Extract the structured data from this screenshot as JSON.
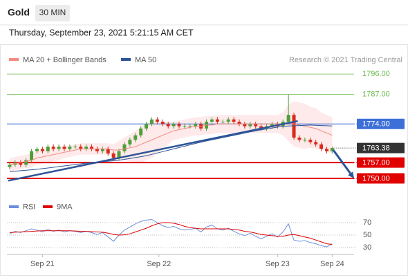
{
  "header": {
    "symbol": "Gold",
    "interval": "30 MIN",
    "timestamp": "Thursday, September 23, 2021 5:21:15 AM CET"
  },
  "chart_data": [
    {
      "type": "candlestick",
      "credit": "Research © 2021 Trading Central",
      "up_color": "#4f9e3a",
      "down_color": "#d9291c",
      "xlim": [
        -0.5,
        63
      ],
      "ylim": [
        1742,
        1800
      ],
      "open": [
        1755,
        1756,
        1757,
        1756,
        1758,
        1762,
        1763,
        1762,
        1764,
        1763,
        1764,
        1763,
        1764,
        1764,
        1763,
        1764,
        1763,
        1762,
        1763,
        1761,
        1759,
        1762,
        1765,
        1767,
        1769,
        1772,
        1774,
        1776,
        1775,
        1774,
        1773,
        1774,
        1773,
        1773,
        1773,
        1774,
        1772,
        1775,
        1776,
        1775,
        1775,
        1776,
        1775,
        1774,
        1773,
        1774,
        1773,
        1772,
        1773,
        1774,
        1773,
        1775,
        1778,
        1768,
        1767,
        1767,
        1766,
        1765,
        1763,
        1762
      ],
      "high": [
        1757,
        1758,
        1758,
        1759,
        1763,
        1764,
        1764,
        1765,
        1765,
        1765,
        1765,
        1765,
        1765,
        1765,
        1765,
        1765,
        1764,
        1764,
        1764,
        1762,
        1763,
        1766,
        1768,
        1770,
        1773,
        1775,
        1777,
        1777,
        1776,
        1775,
        1775,
        1775,
        1774,
        1774,
        1775,
        1775,
        1776,
        1777,
        1777,
        1776,
        1777,
        1777,
        1776,
        1775,
        1775,
        1775,
        1774,
        1774,
        1775,
        1775,
        1776,
        1787,
        1779,
        1769,
        1768,
        1768,
        1767,
        1766,
        1764,
        1764
      ],
      "low": [
        1754,
        1755,
        1755,
        1755,
        1757,
        1761,
        1761,
        1761,
        1762,
        1762,
        1762,
        1762,
        1763,
        1762,
        1762,
        1762,
        1761,
        1761,
        1760,
        1758,
        1758,
        1761,
        1764,
        1766,
        1768,
        1771,
        1773,
        1774,
        1773,
        1772,
        1772,
        1772,
        1772,
        1772,
        1772,
        1771,
        1771,
        1774,
        1774,
        1774,
        1774,
        1774,
        1773,
        1772,
        1772,
        1772,
        1771,
        1771,
        1772,
        1772,
        1772,
        1774,
        1767,
        1766,
        1766,
        1765,
        1764,
        1762,
        1761,
        1761
      ],
      "close": [
        1756,
        1757,
        1756,
        1758,
        1762,
        1763,
        1762,
        1764,
        1763,
        1764,
        1763,
        1764,
        1764,
        1763,
        1764,
        1763,
        1762,
        1763,
        1761,
        1759,
        1762,
        1765,
        1767,
        1769,
        1772,
        1774,
        1776,
        1775,
        1774,
        1773,
        1774,
        1773,
        1773,
        1773,
        1774,
        1772,
        1775,
        1776,
        1775,
        1775,
        1776,
        1775,
        1774,
        1773,
        1774,
        1773,
        1772,
        1773,
        1774,
        1773,
        1775,
        1778,
        1768,
        1767,
        1767,
        1766,
        1765,
        1763,
        1762,
        1763.4
      ],
      "series": [
        {
          "name": "MA 20 + Bollinger Bands",
          "color": "#f28b82",
          "band_color": "#fde3e3",
          "values": [
            1756,
            1756.5,
            1757,
            1757.5,
            1758,
            1759,
            1759.5,
            1760,
            1760.5,
            1761,
            1761.5,
            1762,
            1762.5,
            1763,
            1763,
            1763,
            1763,
            1763,
            1763,
            1762.5,
            1762.5,
            1763,
            1763.5,
            1764,
            1765,
            1766,
            1767,
            1768,
            1769,
            1770,
            1771,
            1771.5,
            1772,
            1772.5,
            1773,
            1773,
            1773.5,
            1773.5,
            1774,
            1774,
            1774,
            1774,
            1774,
            1774,
            1774,
            1774,
            1774,
            1774,
            1774,
            1774,
            1774,
            1774.5,
            1774,
            1773.5,
            1773,
            1772.5,
            1772,
            1771,
            1770,
            1769
          ],
          "upper": [
            1759,
            1759.5,
            1760,
            1760.5,
            1761,
            1762,
            1762.5,
            1763,
            1763.5,
            1764,
            1764,
            1764.5,
            1765,
            1765.5,
            1765.5,
            1765.5,
            1765.5,
            1765.5,
            1765.5,
            1765,
            1766.5,
            1768,
            1769.5,
            1771,
            1773,
            1774,
            1775,
            1775,
            1775,
            1775,
            1775,
            1775.5,
            1776,
            1776.5,
            1777,
            1777,
            1777.5,
            1777.5,
            1778,
            1778,
            1778,
            1778,
            1778,
            1778,
            1778,
            1778,
            1778,
            1778,
            1778,
            1778,
            1779,
            1782.5,
            1784,
            1783.5,
            1783,
            1781.5,
            1781,
            1779,
            1778,
            1777
          ],
          "lower": [
            1753,
            1753.5,
            1754,
            1754.5,
            1755,
            1756,
            1756.5,
            1757,
            1757.5,
            1758,
            1759,
            1759.5,
            1760,
            1760.5,
            1760.5,
            1760.5,
            1760.5,
            1760.5,
            1760.5,
            1760,
            1758.5,
            1758,
            1757.5,
            1757,
            1757,
            1758,
            1759,
            1761,
            1763,
            1765,
            1767,
            1767.5,
            1768,
            1768.5,
            1769,
            1769,
            1769.5,
            1769.5,
            1770,
            1770,
            1770,
            1770,
            1770,
            1770,
            1770,
            1770,
            1770,
            1770,
            1770,
            1770,
            1769,
            1766.5,
            1764,
            1763.5,
            1763,
            1763.5,
            1763,
            1763,
            1762,
            1761
          ]
        },
        {
          "name": "MA 50",
          "color": "#2c5597",
          "values": [
            1753,
            1753.2,
            1753.4,
            1753.6,
            1753.8,
            1754,
            1754.3,
            1754.6,
            1754.9,
            1755.2,
            1755.5,
            1755.8,
            1756.1,
            1756.4,
            1756.7,
            1757,
            1757.2,
            1757.4,
            1757.6,
            1757.8,
            1758,
            1758.4,
            1758.8,
            1759.2,
            1759.6,
            1760,
            1760.6,
            1761.2,
            1761.8,
            1762.4,
            1763,
            1763.6,
            1764.2,
            1764.8,
            1765.4,
            1766,
            1766.5,
            1767,
            1767.5,
            1768,
            1768.5,
            1769,
            1769.5,
            1770,
            1770.5,
            1771,
            1771.4,
            1771.8,
            1772.2,
            1772.6,
            1773,
            1773.1,
            1773.2,
            1773.3,
            1773.4,
            1773.5,
            1773.4,
            1773.3,
            1773.2,
            1773.1
          ]
        }
      ],
      "levels": [
        {
          "value": 1796,
          "label": "1796.00",
          "color": "#6cb84a",
          "boxed": false,
          "line_width": 0.8
        },
        {
          "value": 1787,
          "label": "1787.00",
          "color": "#6cb84a",
          "boxed": false,
          "line_width": 0.8
        },
        {
          "value": 1774,
          "label": "1774.00",
          "color": "#3d6fd8",
          "boxed": true,
          "line_width": 1.2
        },
        {
          "value": 1757,
          "label": "1757.00",
          "color": "#e00000",
          "boxed": true,
          "line_width": 2
        },
        {
          "value": 1750,
          "label": "1750.00",
          "color": "#e00000",
          "boxed": true,
          "line_width": 2
        }
      ],
      "current": 1763.38,
      "current_color": "#333333",
      "trendline": {
        "x": [
          -0.25,
          52.7
        ],
        "y": [
          1749,
          1775.3
        ],
        "color": "#2c5597"
      },
      "arrow": {
        "x": [
          59.2,
          63
        ],
        "y": [
          1762.5,
          1750
        ],
        "color": "#2c5597"
      }
    },
    {
      "type": "line",
      "xlim": [
        -0.5,
        63
      ],
      "ylim": [
        22,
        83
      ],
      "yticks": [
        30,
        50,
        70
      ],
      "xticks": [
        {
          "value": 6,
          "label": "Sep 21"
        },
        {
          "value": 27.3,
          "label": "Sep 22"
        },
        {
          "value": 49,
          "label": "Sep 23"
        },
        {
          "value": 59,
          "label": "Sep 24"
        }
      ],
      "series": [
        {
          "name": "RSI",
          "color": "#6b8fdc",
          "values": [
            52,
            56,
            54,
            57,
            60,
            58,
            55,
            59,
            56,
            58,
            55,
            57,
            56,
            54,
            56,
            54,
            51,
            54,
            47,
            40,
            50,
            58,
            63,
            68,
            72,
            74,
            75,
            70,
            65,
            62,
            64,
            60,
            58,
            59,
            61,
            55,
            63,
            66,
            60,
            58,
            61,
            56,
            52,
            49,
            53,
            48,
            44,
            48,
            52,
            47,
            55,
            68,
            42,
            40,
            41,
            38,
            36,
            33,
            31,
            36
          ]
        },
        {
          "name": "9MA",
          "color": "#e00000",
          "values": [
            54,
            54.5,
            55,
            55.5,
            56,
            56.5,
            57,
            57,
            57,
            57,
            57,
            57,
            56.5,
            56,
            56,
            55.5,
            55,
            54.5,
            53,
            51,
            50,
            50.5,
            52,
            55,
            58,
            61,
            65,
            68,
            70,
            70,
            69,
            67,
            64,
            62,
            61,
            60,
            60,
            60,
            60,
            60,
            60,
            59,
            58,
            56,
            55,
            53,
            51,
            50,
            49,
            48,
            48,
            50,
            51,
            49,
            47,
            45,
            42,
            39,
            36,
            35
          ]
        }
      ]
    }
  ]
}
